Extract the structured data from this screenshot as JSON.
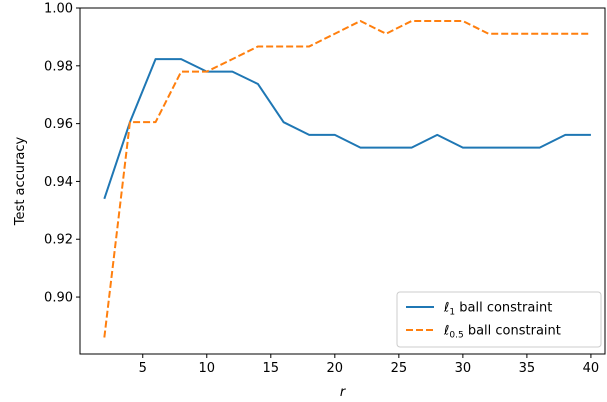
{
  "chart_data": {
    "type": "line",
    "title": "",
    "xlabel": "r",
    "ylabel": "Test accuracy",
    "xlim": [
      0.1,
      41.1
    ],
    "ylim": [
      0.8803,
      1.0
    ],
    "xticks": [
      5,
      10,
      15,
      20,
      25,
      30,
      35,
      40
    ],
    "yticks": [
      0.9,
      0.92,
      0.94,
      0.96,
      0.98,
      1.0
    ],
    "xtick_labels": [
      "5",
      "10",
      "15",
      "20",
      "25",
      "30",
      "35",
      "40"
    ],
    "ytick_labels": [
      "0.90",
      "0.92",
      "0.94",
      "0.96",
      "0.98",
      "1.00"
    ],
    "grid": false,
    "legend_position": "bottom-right",
    "x": [
      2,
      4,
      6,
      8,
      10,
      12,
      14,
      16,
      18,
      20,
      22,
      24,
      26,
      28,
      30,
      32,
      34,
      36,
      38,
      40
    ],
    "series": [
      {
        "name": "ℓ1 ball constraint",
        "legend_base": "ℓ",
        "legend_sub": "1",
        "legend_rest": " ball constraint",
        "color": "#1f77b4",
        "dash": "solid",
        "values": [
          0.934,
          0.9605,
          0.9823,
          0.9823,
          0.978,
          0.978,
          0.9737,
          0.9605,
          0.9561,
          0.9561,
          0.9517,
          0.9517,
          0.9517,
          0.9561,
          0.9517,
          0.9517,
          0.9517,
          0.9517,
          0.9561,
          0.9561
        ]
      },
      {
        "name": "ℓ0.5 ball constraint",
        "legend_base": "ℓ",
        "legend_sub": "0.5",
        "legend_rest": " ball constraint",
        "color": "#ff7f0e",
        "dash": "dashed",
        "values": [
          0.886,
          0.9605,
          0.9605,
          0.978,
          0.978,
          0.9823,
          0.9867,
          0.9867,
          0.9867,
          0.9911,
          0.9955,
          0.9911,
          0.9955,
          0.9955,
          0.9955,
          0.9911,
          0.9911,
          0.9911,
          0.9911,
          0.9911
        ]
      }
    ]
  }
}
